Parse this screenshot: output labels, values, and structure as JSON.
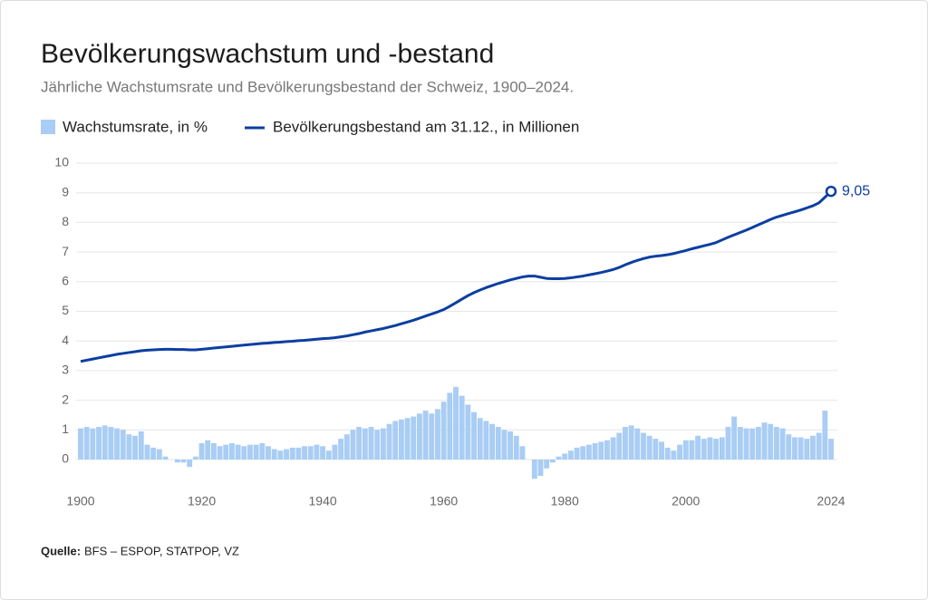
{
  "chart_data": {
    "type": "bar-line",
    "title": "Bevölkerungswachstum und -bestand",
    "subtitle": "Jährliche Wachstumsrate und Bevölkerungsbestand der Schweiz, 1900–2024.",
    "source_label": "Quelle:",
    "source": "BFS – ESPOP, STATPOP, VZ",
    "x": [
      1900,
      1901,
      1902,
      1903,
      1904,
      1905,
      1906,
      1907,
      1908,
      1909,
      1910,
      1911,
      1912,
      1913,
      1914,
      1915,
      1916,
      1917,
      1918,
      1919,
      1920,
      1921,
      1922,
      1923,
      1924,
      1925,
      1926,
      1927,
      1928,
      1929,
      1930,
      1931,
      1932,
      1933,
      1934,
      1935,
      1936,
      1937,
      1938,
      1939,
      1940,
      1941,
      1942,
      1943,
      1944,
      1945,
      1946,
      1947,
      1948,
      1949,
      1950,
      1951,
      1952,
      1953,
      1954,
      1955,
      1956,
      1957,
      1958,
      1959,
      1960,
      1961,
      1962,
      1963,
      1964,
      1965,
      1966,
      1967,
      1968,
      1969,
      1970,
      1971,
      1972,
      1973,
      1974,
      1975,
      1976,
      1977,
      1978,
      1979,
      1980,
      1981,
      1982,
      1983,
      1984,
      1985,
      1986,
      1987,
      1988,
      1989,
      1990,
      1991,
      1992,
      1993,
      1994,
      1995,
      1996,
      1997,
      1998,
      1999,
      2000,
      2001,
      2002,
      2003,
      2004,
      2005,
      2006,
      2007,
      2008,
      2009,
      2010,
      2011,
      2012,
      2013,
      2014,
      2015,
      2016,
      2017,
      2018,
      2019,
      2020,
      2021,
      2022,
      2023,
      2024
    ],
    "series": [
      {
        "name": "Wachstumsrate, in %",
        "type": "bar",
        "color": "#a9cdf4",
        "values": [
          1.05,
          1.1,
          1.05,
          1.1,
          1.15,
          1.1,
          1.05,
          1.0,
          0.85,
          0.8,
          0.95,
          0.5,
          0.4,
          0.35,
          0.1,
          0.0,
          -0.1,
          -0.1,
          -0.25,
          0.1,
          0.55,
          0.65,
          0.55,
          0.45,
          0.5,
          0.55,
          0.5,
          0.45,
          0.5,
          0.5,
          0.55,
          0.45,
          0.35,
          0.3,
          0.35,
          0.4,
          0.4,
          0.45,
          0.45,
          0.5,
          0.45,
          0.3,
          0.5,
          0.7,
          0.85,
          1.0,
          1.1,
          1.05,
          1.1,
          1.0,
          1.05,
          1.2,
          1.3,
          1.35,
          1.4,
          1.45,
          1.55,
          1.65,
          1.55,
          1.7,
          1.95,
          2.25,
          2.45,
          2.15,
          1.85,
          1.6,
          1.4,
          1.3,
          1.2,
          1.1,
          1.0,
          0.95,
          0.8,
          0.45,
          0.0,
          -0.65,
          -0.55,
          -0.3,
          -0.1,
          0.1,
          0.2,
          0.3,
          0.4,
          0.45,
          0.5,
          0.55,
          0.6,
          0.65,
          0.75,
          0.9,
          1.1,
          1.15,
          1.05,
          0.9,
          0.8,
          0.7,
          0.6,
          0.4,
          0.3,
          0.5,
          0.65,
          0.65,
          0.8,
          0.7,
          0.75,
          0.7,
          0.75,
          1.1,
          1.45,
          1.1,
          1.05,
          1.05,
          1.1,
          1.25,
          1.2,
          1.1,
          1.05,
          0.85,
          0.75,
          0.75,
          0.7,
          0.8,
          0.9,
          1.65,
          0.7
        ]
      },
      {
        "name": "Bevölkerungsbestand am 31.12., in Millionen",
        "type": "line",
        "color": "#0b3fa0",
        "values": [
          3.31,
          3.35,
          3.39,
          3.43,
          3.47,
          3.51,
          3.55,
          3.58,
          3.61,
          3.64,
          3.67,
          3.69,
          3.7,
          3.71,
          3.72,
          3.72,
          3.71,
          3.71,
          3.7,
          3.7,
          3.72,
          3.74,
          3.76,
          3.78,
          3.8,
          3.82,
          3.84,
          3.86,
          3.88,
          3.9,
          3.92,
          3.93,
          3.95,
          3.96,
          3.98,
          3.99,
          4.01,
          4.02,
          4.04,
          4.06,
          4.08,
          4.09,
          4.11,
          4.14,
          4.17,
          4.21,
          4.25,
          4.3,
          4.34,
          4.38,
          4.42,
          4.47,
          4.52,
          4.58,
          4.64,
          4.7,
          4.77,
          4.84,
          4.91,
          4.98,
          5.06,
          5.17,
          5.29,
          5.41,
          5.53,
          5.63,
          5.72,
          5.8,
          5.87,
          5.94,
          6.0,
          6.06,
          6.11,
          6.16,
          6.19,
          6.19,
          6.15,
          6.11,
          6.1,
          6.1,
          6.11,
          6.13,
          6.16,
          6.19,
          6.23,
          6.27,
          6.31,
          6.36,
          6.41,
          6.48,
          6.57,
          6.65,
          6.72,
          6.78,
          6.83,
          6.86,
          6.88,
          6.91,
          6.95,
          7.0,
          7.05,
          7.11,
          7.16,
          7.21,
          7.26,
          7.32,
          7.41,
          7.5,
          7.58,
          7.66,
          7.74,
          7.83,
          7.92,
          8.01,
          8.1,
          8.18,
          8.24,
          8.3,
          8.36,
          8.42,
          8.49,
          8.56,
          8.66,
          8.85,
          9.05
        ],
        "value_labels": [
          null,
          null,
          null,
          null,
          null,
          null,
          null,
          null,
          null,
          null,
          null,
          null,
          null,
          null,
          null,
          null,
          null,
          null,
          null,
          null,
          null,
          null,
          null,
          null,
          null,
          null,
          null,
          null,
          null,
          null,
          null,
          null,
          null,
          null,
          null,
          null,
          null,
          null,
          null,
          null,
          null,
          null,
          null,
          null,
          null,
          null,
          null,
          null,
          null,
          null,
          null,
          null,
          null,
          null,
          null,
          null,
          null,
          null,
          null,
          null,
          null,
          null,
          null,
          null,
          null,
          null,
          null,
          null,
          null,
          null,
          null,
          null,
          null,
          null,
          null,
          null,
          null,
          null,
          null,
          null,
          null,
          null,
          null,
          null,
          null,
          null,
          null,
          null,
          null,
          null,
          null,
          null,
          null,
          null,
          null,
          null,
          null,
          null,
          null,
          null,
          null,
          null,
          null,
          null,
          null,
          null,
          null,
          null,
          null,
          null,
          null,
          null,
          null,
          null,
          null,
          null,
          null,
          null,
          null,
          null,
          null,
          null,
          null,
          null,
          "9,05"
        ]
      }
    ],
    "xlim": [
      1900,
      2024
    ],
    "xticks": [
      1900,
      1920,
      1940,
      1960,
      1980,
      2000,
      2024
    ],
    "ylim": [
      -1,
      10
    ],
    "yticks": [
      0,
      1,
      2,
      3,
      4,
      5,
      6,
      7,
      8,
      9,
      10
    ],
    "grid": true
  }
}
